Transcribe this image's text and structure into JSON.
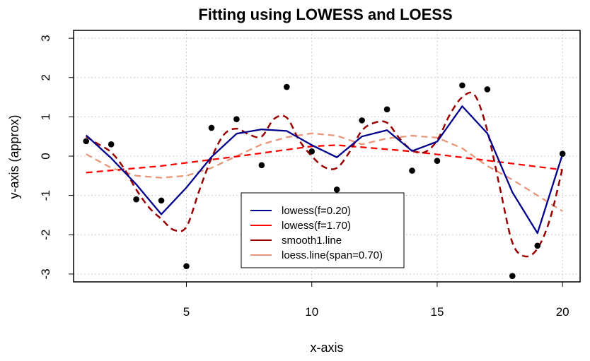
{
  "chart_data": {
    "type": "scatter",
    "title": "Fitting using LOWESS and LOESS",
    "xlabel": "x-axis",
    "ylabel": "y-axis (approx)",
    "xlim": [
      0.5,
      20.7
    ],
    "ylim": [
      -3.2,
      3.2
    ],
    "xticks": [
      5,
      10,
      15,
      20
    ],
    "yticks": [
      -3,
      -2,
      -1,
      0,
      1,
      2,
      3
    ],
    "grid": true,
    "legend_position": "bottom-center",
    "points": {
      "x": [
        1,
        2,
        3,
        4,
        5,
        6,
        7,
        8,
        9,
        10,
        11,
        12,
        13,
        14,
        15,
        16,
        17,
        18,
        19,
        20
      ],
      "y": [
        0.38,
        0.3,
        -1.1,
        -1.13,
        -2.8,
        0.72,
        0.94,
        -0.23,
        1.76,
        0.12,
        -0.85,
        0.91,
        1.19,
        -0.37,
        -0.12,
        1.8,
        1.7,
        -3.05,
        -2.28,
        0.06
      ],
      "color": "#000000"
    },
    "series": [
      {
        "name": "lowess(f=0.20)",
        "color": "#00008b",
        "style": "solid",
        "x": [
          1,
          2,
          3,
          4,
          5,
          6,
          7,
          8,
          9,
          10,
          11,
          12,
          13,
          14,
          15,
          16,
          17,
          18,
          19,
          20
        ],
        "y": [
          0.53,
          -0.05,
          -0.72,
          -1.48,
          -0.8,
          -0.02,
          0.57,
          0.68,
          0.64,
          0.28,
          -0.03,
          0.5,
          0.66,
          0.13,
          0.37,
          1.27,
          0.58,
          -0.92,
          -1.96,
          0.05
        ]
      },
      {
        "name": "lowess(f=1.70)",
        "color": "#ff0000",
        "style": "dashed",
        "x": [
          1,
          4,
          7,
          10,
          11,
          14,
          17,
          20
        ],
        "y": [
          -0.42,
          -0.25,
          -0.01,
          0.25,
          0.28,
          0.12,
          -0.11,
          -0.35
        ]
      },
      {
        "name": "smooth1.line",
        "color": "#990000",
        "style": "dashed",
        "x": [
          1,
          1.5,
          2,
          2.5,
          3,
          3.5,
          4,
          4.5,
          5,
          5.5,
          6,
          6.5,
          7,
          7.5,
          8,
          8.5,
          9,
          9.5,
          10,
          10.5,
          11,
          11.5,
          12,
          12.5,
          13,
          13.5,
          14,
          14.5,
          15,
          15.5,
          16,
          16.5,
          17,
          17.5,
          18,
          18.5,
          19,
          19.5,
          20
        ],
        "y": [
          0.5,
          0.3,
          0.1,
          -0.3,
          -0.85,
          -1.3,
          -1.6,
          -1.88,
          -1.8,
          -0.9,
          -0.05,
          0.55,
          0.7,
          0.55,
          0.5,
          0.95,
          0.98,
          0.4,
          0.0,
          -0.28,
          -0.3,
          0.1,
          0.65,
          0.85,
          0.85,
          0.45,
          0.15,
          0.1,
          0.4,
          1.05,
          1.5,
          1.55,
          0.65,
          -0.8,
          -2.2,
          -2.55,
          -2.35,
          -1.6,
          -0.3
        ]
      },
      {
        "name": "loess.line(span=0.70)",
        "color": "#e9967a",
        "style": "dashed",
        "x": [
          1,
          2,
          3,
          4,
          5,
          6,
          7,
          8,
          9,
          10,
          11,
          12,
          13,
          14,
          15,
          16,
          17,
          18,
          19,
          20
        ],
        "y": [
          0.05,
          -0.3,
          -0.5,
          -0.55,
          -0.5,
          -0.3,
          0.0,
          0.3,
          0.48,
          0.58,
          0.52,
          0.3,
          0.45,
          0.52,
          0.47,
          0.2,
          -0.25,
          -0.6,
          -1.0,
          -1.4
        ]
      }
    ]
  }
}
